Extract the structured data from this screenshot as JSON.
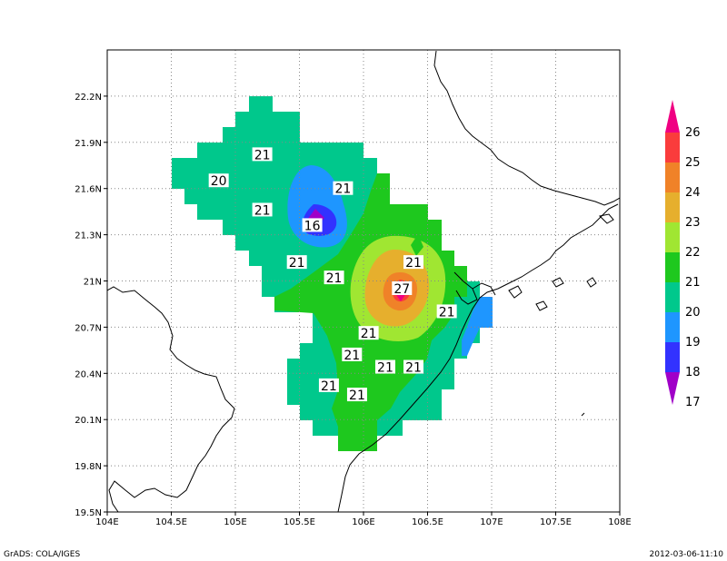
{
  "footer": {
    "left": "GrADS: COLA/IGES",
    "right": "2012-03-06-11:10"
  },
  "axes": {
    "x_ticks": [
      "104E",
      "104.5E",
      "105E",
      "105.5E",
      "106E",
      "106.5E",
      "107E",
      "107.5E",
      "108E"
    ],
    "y_ticks": [
      "19.5N",
      "19.8N",
      "20.1N",
      "20.4N",
      "20.7N",
      "21N",
      "21.3N",
      "21.6N",
      "21.9N",
      "22.2N"
    ],
    "x_range": [
      104,
      108
    ],
    "y_range": [
      19.5,
      22.5
    ],
    "grid": true
  },
  "colorbar": {
    "labels": [
      "17",
      "18",
      "19",
      "20",
      "21",
      "22",
      "23",
      "24",
      "25",
      "26"
    ],
    "colors": [
      "#a000c8",
      "#3232ff",
      "#1e96ff",
      "#00c88c",
      "#1ec81e",
      "#a0e632",
      "#e6af2d",
      "#f08228",
      "#fa3c3c",
      "#f00082"
    ]
  },
  "contour_labels": [
    {
      "text": "21",
      "lon": 105.21,
      "lat": 21.82
    },
    {
      "text": "20",
      "lon": 104.87,
      "lat": 21.65
    },
    {
      "text": "21",
      "lon": 105.84,
      "lat": 21.6
    },
    {
      "text": "21",
      "lon": 105.21,
      "lat": 21.46
    },
    {
      "text": "16",
      "lon": 105.6,
      "lat": 21.36
    },
    {
      "text": "21",
      "lon": 106.39,
      "lat": 21.12
    },
    {
      "text": "21",
      "lon": 105.48,
      "lat": 21.12
    },
    {
      "text": "21",
      "lon": 105.77,
      "lat": 21.02
    },
    {
      "text": "27",
      "lon": 106.3,
      "lat": 20.95
    },
    {
      "text": "21",
      "lon": 106.65,
      "lat": 20.8
    },
    {
      "text": "21",
      "lon": 106.04,
      "lat": 20.66
    },
    {
      "text": "21",
      "lon": 105.91,
      "lat": 20.52
    },
    {
      "text": "21",
      "lon": 106.17,
      "lat": 20.44
    },
    {
      "text": "21",
      "lon": 106.39,
      "lat": 20.44
    },
    {
      "text": "21",
      "lon": 105.73,
      "lat": 20.32
    },
    {
      "text": "21",
      "lon": 105.95,
      "lat": 20.26
    }
  ]
}
